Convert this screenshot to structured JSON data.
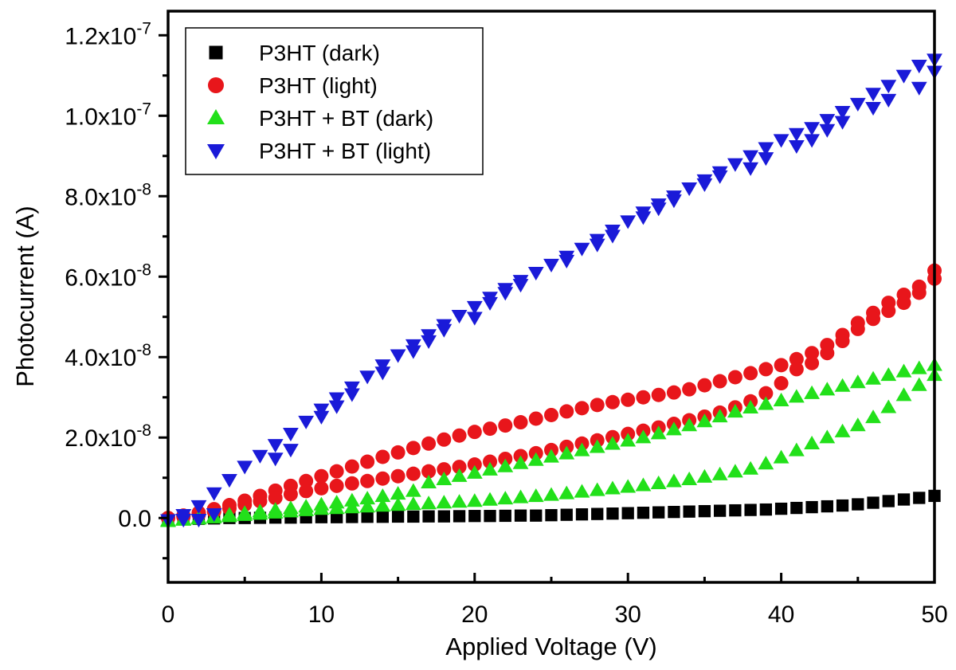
{
  "chart_data": {
    "type": "scatter",
    "title": "",
    "xlabel": "Applied Voltage (V)",
    "ylabel": "Photocurrent (A)",
    "xlim": [
      0,
      50
    ],
    "ylim": [
      -1.6e-08,
      1.26e-07
    ],
    "x_ticks": [
      {
        "value": 0,
        "label": "0"
      },
      {
        "value": 10,
        "label": "10"
      },
      {
        "value": 20,
        "label": "20"
      },
      {
        "value": 30,
        "label": "30"
      },
      {
        "value": 40,
        "label": "40"
      },
      {
        "value": 50,
        "label": "50"
      }
    ],
    "y_ticks": [
      {
        "value": 0,
        "mantissa": "0.0",
        "exp": ""
      },
      {
        "value": 2e-08,
        "mantissa": "2.0x10",
        "exp": "-8"
      },
      {
        "value": 4e-08,
        "mantissa": "4.0x10",
        "exp": "-8"
      },
      {
        "value": 6e-08,
        "mantissa": "6.0x10",
        "exp": "-8"
      },
      {
        "value": 8e-08,
        "mantissa": "8.0x10",
        "exp": "-8"
      },
      {
        "value": 1e-07,
        "mantissa": "1.0x10",
        "exp": "-7"
      },
      {
        "value": 1.2e-07,
        "mantissa": "1.2x10",
        "exp": "-7"
      }
    ],
    "grid": false,
    "legend_position": "top-left",
    "series": [
      {
        "name": "P3HT (dark)",
        "marker": "square",
        "color": "#000000",
        "x": [
          0,
          1,
          2,
          3,
          4,
          5,
          6,
          7,
          8,
          9,
          10,
          11,
          12,
          13,
          14,
          15,
          16,
          17,
          18,
          19,
          20,
          21,
          22,
          23,
          24,
          25,
          26,
          27,
          28,
          29,
          30,
          31,
          32,
          33,
          34,
          35,
          36,
          37,
          38,
          39,
          40,
          41,
          42,
          43,
          44,
          45,
          46,
          47,
          48,
          49,
          50
        ],
        "y": [
          -4e-10,
          -3e-10,
          -2e-10,
          -1e-10,
          0,
          0,
          5e-11,
          1e-10,
          1e-10,
          1.5e-10,
          2e-10,
          2e-10,
          2.5e-10,
          3e-10,
          3e-10,
          3.5e-10,
          3.5e-10,
          4e-10,
          4e-10,
          4.5e-10,
          5e-10,
          5e-10,
          5.5e-10,
          6e-10,
          6e-10,
          7e-10,
          8e-10,
          9e-10,
          1e-09,
          1.1e-09,
          1.2e-09,
          1.3e-09,
          1.4e-09,
          1.5e-09,
          1.6e-09,
          1.7e-09,
          1.8e-09,
          1.9e-09,
          2e-09,
          2.1e-09,
          2.3e-09,
          2.5e-09,
          2.7e-09,
          2.9e-09,
          3.1e-09,
          3.4e-09,
          3.8e-09,
          4.2e-09,
          4.6e-09,
          5e-09,
          5.5e-09
        ]
      },
      {
        "name": "P3HT (light)",
        "marker": "circle",
        "color": "#e8161b",
        "x": [
          0,
          1,
          2,
          3,
          4,
          5,
          6,
          7,
          8,
          9,
          10,
          11,
          12,
          13,
          14,
          15,
          16,
          17,
          18,
          19,
          20,
          21,
          22,
          23,
          24,
          25,
          26,
          27,
          28,
          29,
          30,
          31,
          32,
          33,
          34,
          35,
          36,
          37,
          38,
          39,
          40,
          41,
          42,
          43,
          44,
          45,
          46,
          47,
          48,
          49,
          50,
          0,
          1,
          2,
          3,
          4,
          5,
          6,
          7,
          8,
          9,
          10,
          11,
          12,
          13,
          14,
          15,
          16,
          17,
          18,
          19,
          20,
          21,
          22,
          23,
          24,
          25,
          26,
          27,
          28,
          29,
          30,
          31,
          32,
          33,
          34,
          35,
          36,
          37,
          38,
          39,
          40,
          41,
          42,
          43,
          44,
          45,
          46,
          47,
          48,
          49,
          50
        ],
        "y": [
          0,
          6e-10,
          1.3e-09,
          2.2e-09,
          3.2e-09,
          4.3e-09,
          5.5e-09,
          6.8e-09,
          8e-09,
          9.2e-09,
          1.04e-08,
          1.16e-08,
          1.28e-08,
          1.4e-08,
          1.52e-08,
          1.63e-08,
          1.74e-08,
          1.85e-08,
          1.95e-08,
          2.05e-08,
          2.14e-08,
          2.22e-08,
          2.3e-08,
          2.38e-08,
          2.47e-08,
          2.56e-08,
          2.65e-08,
          2.73e-08,
          2.81e-08,
          2.88e-08,
          2.94e-08,
          3e-08,
          3.06e-08,
          3.12e-08,
          3.2e-08,
          3.3e-08,
          3.4e-08,
          3.5e-08,
          3.6e-08,
          3.7e-08,
          3.8e-08,
          3.95e-08,
          4.1e-08,
          4.3e-08,
          4.55e-08,
          4.85e-08,
          5.1e-08,
          5.35e-08,
          5.55e-08,
          5.75e-08,
          6.15e-08,
          0,
          3e-10,
          9e-10,
          1.6e-09,
          2.4e-09,
          3.3e-09,
          4.2e-09,
          5e-09,
          5.9e-09,
          6.7e-09,
          7.4e-09,
          8e-09,
          8.6e-09,
          9.2e-09,
          9.8e-09,
          1.04e-08,
          1.1e-08,
          1.16e-08,
          1.21e-08,
          1.27e-08,
          1.33e-08,
          1.4e-08,
          1.47e-08,
          1.54e-08,
          1.61e-08,
          1.69e-08,
          1.77e-08,
          1.85e-08,
          1.93e-08,
          2.01e-08,
          2.09e-08,
          2.17e-08,
          2.25e-08,
          2.34e-08,
          2.43e-08,
          2.52e-08,
          2.62e-08,
          2.75e-08,
          2.9e-08,
          3.1e-08,
          3.35e-08,
          3.7e-08,
          3.85e-08,
          4.1e-08,
          4.4e-08,
          4.7e-08,
          4.95e-08,
          5.15e-08,
          5.35e-08,
          5.6e-08,
          5.95e-08
        ]
      },
      {
        "name": "P3HT + BT (dark)",
        "marker": "triangle-up",
        "color": "#22e01a",
        "x": [
          0,
          1,
          2,
          3,
          4,
          5,
          6,
          7,
          8,
          9,
          10,
          11,
          12,
          13,
          14,
          15,
          16,
          17,
          18,
          19,
          20,
          21,
          22,
          23,
          24,
          25,
          26,
          27,
          28,
          29,
          30,
          31,
          32,
          33,
          34,
          35,
          36,
          37,
          38,
          39,
          40,
          41,
          42,
          43,
          44,
          45,
          46,
          47,
          48,
          49,
          50,
          0,
          1,
          2,
          3,
          4,
          5,
          6,
          7,
          8,
          9,
          10,
          11,
          12,
          13,
          14,
          15,
          16,
          17,
          18,
          19,
          20,
          21,
          22,
          23,
          24,
          25,
          26,
          27,
          28,
          29,
          30,
          31,
          32,
          33,
          34,
          35,
          36,
          37,
          38,
          39,
          40,
          41,
          42,
          43,
          44,
          45,
          46,
          47,
          48,
          49,
          50
        ],
        "y": [
          -6e-10,
          -3e-10,
          0,
          4e-10,
          8e-10,
          1.2e-09,
          1.6e-09,
          2e-09,
          2.4e-09,
          2.8e-09,
          3.3e-09,
          3.8e-09,
          4.3e-09,
          4.8e-09,
          5.4e-09,
          6e-09,
          6.7e-09,
          8.8e-09,
          9.6e-09,
          1.04e-08,
          1.12e-08,
          1.2e-08,
          1.28e-08,
          1.36e-08,
          1.44e-08,
          1.52e-08,
          1.6e-08,
          1.68e-08,
          1.76e-08,
          1.84e-08,
          1.92e-08,
          2e-08,
          2.1e-08,
          2.2e-08,
          2.3e-08,
          2.4e-08,
          2.52e-08,
          2.64e-08,
          2.74e-08,
          2.83e-08,
          2.92e-08,
          3.01e-08,
          3.1e-08,
          3.19e-08,
          3.28e-08,
          3.37e-08,
          3.46e-08,
          3.55e-08,
          3.64e-08,
          3.72e-08,
          3.8e-08,
          -8e-10,
          -5e-10,
          -2e-10,
          1e-10,
          4e-10,
          7e-10,
          1e-09,
          1.3e-09,
          1.6e-09,
          1.9e-09,
          2.2e-09,
          2.4e-09,
          2.6e-09,
          2.8e-09,
          3e-09,
          3.2e-09,
          3.4e-09,
          3.6e-09,
          3.8e-09,
          4e-09,
          4.2e-09,
          4.5e-09,
          4.8e-09,
          5.1e-09,
          5.4e-09,
          5.7e-09,
          6.1e-09,
          6.5e-09,
          6.9e-09,
          7.3e-09,
          7.7e-09,
          8.1e-09,
          8.6e-09,
          9.1e-09,
          9.6e-09,
          1.02e-08,
          1.08e-08,
          1.15e-08,
          1.22e-08,
          1.35e-08,
          1.5e-08,
          1.68e-08,
          1.85e-08,
          2e-08,
          2.15e-08,
          2.3e-08,
          2.5e-08,
          2.75e-08,
          3.05e-08,
          3.3e-08,
          3.55e-08
        ]
      },
      {
        "name": "P3HT + BT (light)",
        "marker": "triangle-down",
        "color": "#1a1ad8",
        "x": [
          0,
          1,
          2,
          3,
          4,
          5,
          6,
          7,
          8,
          9,
          10,
          11,
          12,
          13,
          14,
          15,
          16,
          17,
          18,
          19,
          20,
          21,
          22,
          23,
          24,
          25,
          26,
          27,
          28,
          29,
          30,
          31,
          32,
          33,
          34,
          35,
          36,
          37,
          38,
          39,
          40,
          41,
          42,
          43,
          44,
          45,
          46,
          47,
          48,
          49,
          50,
          1,
          2,
          3,
          7,
          8,
          10,
          11,
          12,
          14,
          16,
          17,
          18,
          20,
          21,
          22,
          23,
          26,
          28,
          29,
          31,
          32,
          33,
          35,
          36,
          38,
          39,
          41,
          42,
          43,
          44,
          46,
          47,
          49,
          50
        ],
        "y": [
          -5e-10,
          8e-10,
          3e-09,
          6.2e-09,
          9.5e-09,
          1.28e-08,
          1.55e-08,
          1.82e-08,
          2.1e-08,
          2.4e-08,
          2.7e-08,
          2.98e-08,
          3.25e-08,
          3.52e-08,
          3.8e-08,
          4.05e-08,
          4.3e-08,
          4.55e-08,
          4.8e-08,
          5.03e-08,
          5.25e-08,
          5.48e-08,
          5.7e-08,
          5.9e-08,
          6.1e-08,
          6.3e-08,
          6.5e-08,
          6.7e-08,
          6.92e-08,
          7.15e-08,
          7.38e-08,
          7.6e-08,
          7.8e-08,
          8e-08,
          8.2e-08,
          8.4e-08,
          8.6e-08,
          8.8e-08,
          9e-08,
          9.2e-08,
          9.4e-08,
          9.55e-08,
          9.7e-08,
          9.9e-08,
          1.01e-07,
          1.03e-07,
          1.055e-07,
          1.075e-07,
          1.1e-07,
          1.125e-07,
          1.14e-07,
          -4e-10,
          -4e-10,
          1e-09,
          1.48e-08,
          1.7e-08,
          2.52e-08,
          2.78e-08,
          3.08e-08,
          3.62e-08,
          4.15e-08,
          4.4e-08,
          4.68e-08,
          4.98e-08,
          5.35e-08,
          5.6e-08,
          5.8e-08,
          6.4e-08,
          6.8e-08,
          7.02e-08,
          7.48e-08,
          7.7e-08,
          7.9e-08,
          8.3e-08,
          8.5e-08,
          8.7e-08,
          8.95e-08,
          9.25e-08,
          9.4e-08,
          9.65e-08,
          9.85e-08,
          1.02e-07,
          1.04e-07,
          1.07e-07,
          1.11e-07
        ]
      }
    ]
  }
}
